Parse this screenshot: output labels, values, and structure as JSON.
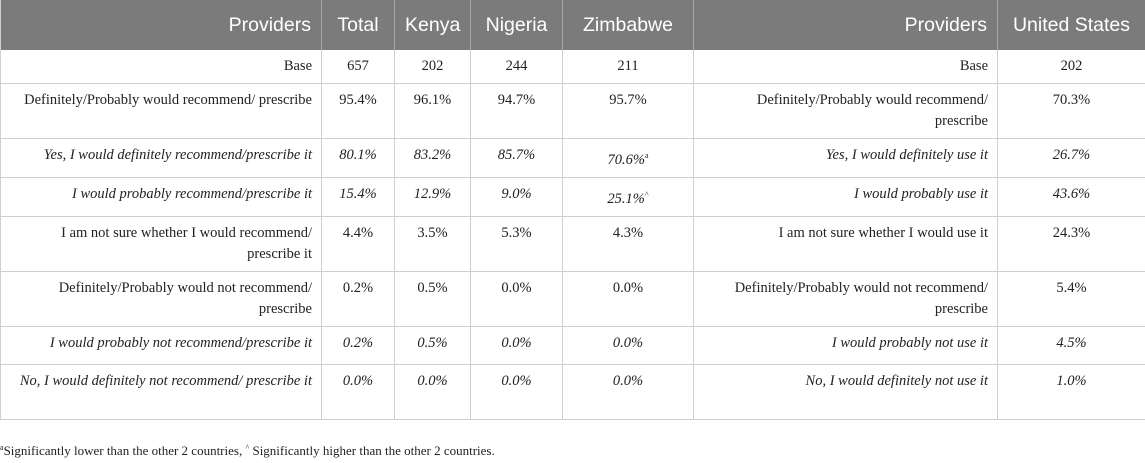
{
  "headers": [
    "Providers",
    "Total",
    "Kenya",
    "Nigeria",
    "Zimbabwe",
    "Providers",
    "United States"
  ],
  "rows": [
    {
      "style": "base",
      "italic": false,
      "label": "Base",
      "total": "657",
      "kenya": "202",
      "nigeria": "244",
      "zimbabwe": "211",
      "zim_mark": "",
      "us_label": "Base",
      "us": "202"
    },
    {
      "style": "two",
      "italic": false,
      "label": "Definitely/Probably would recommend/ prescribe",
      "total": "95.4%",
      "kenya": "96.1%",
      "nigeria": "94.7%",
      "zimbabwe": "95.7%",
      "zim_mark": "",
      "us_label": "Definitely/Probably would recommend/ prescribe",
      "us": "70.3%"
    },
    {
      "style": "one",
      "italic": true,
      "label": "Yes, I would definitely recommend/prescribe it",
      "total": "80.1%",
      "kenya": "83.2%",
      "nigeria": "85.7%",
      "zimbabwe": "70.6%",
      "zim_mark": "a",
      "us_label": "Yes, I would definitely use it",
      "us": "26.7%"
    },
    {
      "style": "one",
      "italic": true,
      "label": "I would probably recommend/prescribe it",
      "total": "15.4%",
      "kenya": "12.9%",
      "nigeria": "9.0%",
      "zimbabwe": "25.1%",
      "zim_mark": "^",
      "us_label": "I would probably use it",
      "us": "43.6%"
    },
    {
      "style": "two",
      "italic": false,
      "label": "I am not sure whether I would recommend/ prescribe it",
      "total": "4.4%",
      "kenya": "3.5%",
      "nigeria": "5.3%",
      "zimbabwe": "4.3%",
      "zim_mark": "",
      "us_label": "I am not sure whether I would use it",
      "us": "24.3%"
    },
    {
      "style": "two",
      "italic": false,
      "label": "Definitely/Probably would not recommend/ prescribe",
      "total": "0.2%",
      "kenya": "0.5%",
      "nigeria": "0.0%",
      "zimbabwe": "0.0%",
      "zim_mark": "",
      "us_label": "Definitely/Probably would not recommend/ prescribe",
      "us": "5.4%"
    },
    {
      "style": "one",
      "italic": true,
      "label": "I would probably not recommend/prescribe it",
      "total": "0.2%",
      "kenya": "0.5%",
      "nigeria": "0.0%",
      "zimbabwe": "0.0%",
      "zim_mark": "",
      "us_label": "I would probably not use it",
      "us": "4.5%"
    },
    {
      "style": "two",
      "italic": true,
      "label": "No, I would definitely not recommend/ prescribe it",
      "total": "0.0%",
      "kenya": "0.0%",
      "nigeria": "0.0%",
      "zimbabwe": "0.0%",
      "zim_mark": "",
      "us_label": "No, I would definitely not use it",
      "us": "1.0%"
    }
  ],
  "footnote": {
    "mark_a": "a",
    "text_a": "Significantly lower than the other 2 countries, ",
    "mark_b": "^",
    "text_b": " Significantly higher than the other 2 countries."
  }
}
